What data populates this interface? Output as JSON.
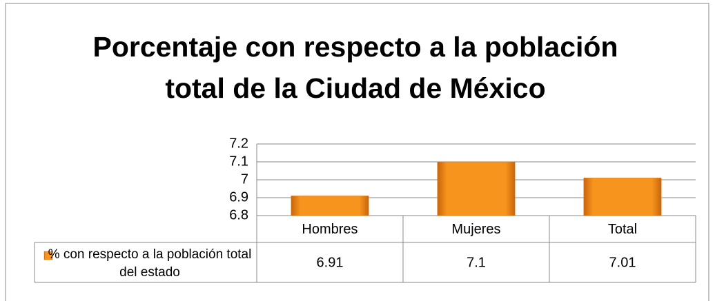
{
  "chart_data": {
    "type": "bar",
    "title": "Porcentaje con respecto a la población total de la Ciudad de México",
    "categories": [
      "Hombres",
      "Mujeres",
      "Total"
    ],
    "series": [
      {
        "name": "% con respecto a la población total del estado",
        "color": "#f7941d",
        "values": [
          6.91,
          7.1,
          7.01
        ]
      }
    ],
    "ylim": [
      6.8,
      7.2
    ],
    "yticks": [
      6.8,
      6.9,
      7,
      7.1,
      7.2
    ],
    "grid": true,
    "data_table": true
  }
}
